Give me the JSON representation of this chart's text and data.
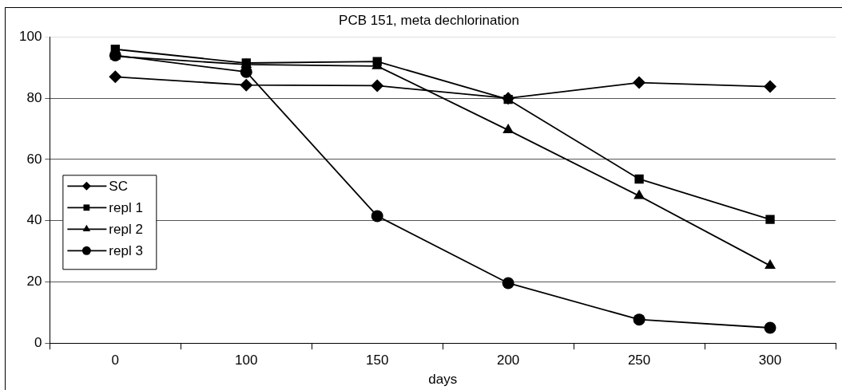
{
  "chart_data": {
    "type": "line",
    "title": "PCB 151, meta dechlorination",
    "xlabel": "days",
    "categories": [
      "0",
      "100",
      "150",
      "200",
      "250",
      "300"
    ],
    "series": [
      {
        "name": "SC",
        "color": "#000000",
        "marker": "diamond",
        "values": [
          87,
          84.3,
          84.1,
          80,
          85.1,
          83.8
        ]
      },
      {
        "name": "repl 1",
        "color": "#000000",
        "marker": "square",
        "values": [
          96,
          91.5,
          92,
          79.6,
          53.6,
          40.4
        ]
      },
      {
        "name": "repl 2",
        "color": "#000000",
        "marker": "triangle",
        "values": [
          93.7,
          91,
          90.5,
          69.6,
          48.1,
          25.3
        ]
      },
      {
        "name": "repl 3",
        "color": "#000000",
        "marker": "circle",
        "values": [
          94,
          88.6,
          41.5,
          19.6,
          7.7,
          5
        ]
      }
    ],
    "ylim": [
      0,
      100
    ],
    "yticks": [
      0,
      20,
      40,
      60,
      80,
      100
    ],
    "grid": "y",
    "legend": "left",
    "line_style": "solid"
  }
}
